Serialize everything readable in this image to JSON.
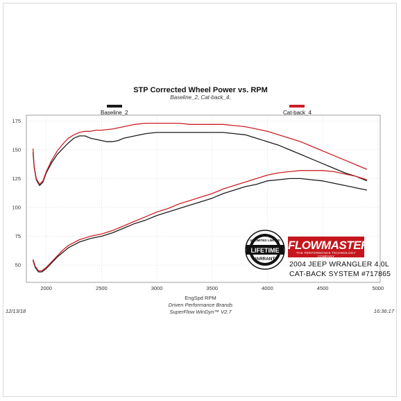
{
  "chart_data": {
    "type": "line",
    "title": "STP Corrected Wheel Power vs. RPM",
    "subtitle": "Baseline_2, Cat-back_4,",
    "xlabel": "EngSpd RPM",
    "ylabel": "",
    "xlim": [
      1820,
      5020
    ],
    "ylim": [
      35,
      180
    ],
    "x_ticks": [
      2000,
      2500,
      3000,
      3500,
      4000,
      4500,
      5000
    ],
    "y_ticks": [
      50,
      75,
      100,
      125,
      150,
      175
    ],
    "grid": true,
    "legend_placement": "top",
    "series": [
      {
        "name": "Baseline_2",
        "color": "#1a1a1a",
        "curve": "power",
        "points": [
          [
            1880,
            148
          ],
          [
            1890,
            135
          ],
          [
            1910,
            124
          ],
          [
            1940,
            119
          ],
          [
            1970,
            122
          ],
          [
            2000,
            130
          ],
          [
            2050,
            139
          ],
          [
            2100,
            146
          ],
          [
            2150,
            151
          ],
          [
            2200,
            156
          ],
          [
            2250,
            160
          ],
          [
            2300,
            162
          ],
          [
            2350,
            162
          ],
          [
            2400,
            160
          ],
          [
            2450,
            159
          ],
          [
            2500,
            158
          ],
          [
            2550,
            157
          ],
          [
            2600,
            157
          ],
          [
            2650,
            158
          ],
          [
            2700,
            160
          ],
          [
            2800,
            162
          ],
          [
            2900,
            164
          ],
          [
            3000,
            165
          ],
          [
            3100,
            165
          ],
          [
            3200,
            165
          ],
          [
            3300,
            165
          ],
          [
            3400,
            165
          ],
          [
            3500,
            165
          ],
          [
            3600,
            165
          ],
          [
            3700,
            164
          ],
          [
            3800,
            163
          ],
          [
            3900,
            160
          ],
          [
            4000,
            157
          ],
          [
            4100,
            154
          ],
          [
            4200,
            150
          ],
          [
            4300,
            146
          ],
          [
            4400,
            142
          ],
          [
            4500,
            138
          ],
          [
            4600,
            134
          ],
          [
            4700,
            130
          ],
          [
            4800,
            127
          ],
          [
            4900,
            123
          ]
        ]
      },
      {
        "name": "Baseline_2",
        "color": "#1a1a1a",
        "curve": "torque",
        "points": [
          [
            1880,
            54
          ],
          [
            1900,
            48
          ],
          [
            1930,
            44
          ],
          [
            1960,
            44
          ],
          [
            2000,
            47
          ],
          [
            2050,
            52
          ],
          [
            2100,
            57
          ],
          [
            2150,
            61
          ],
          [
            2200,
            65
          ],
          [
            2300,
            70
          ],
          [
            2400,
            73
          ],
          [
            2500,
            75
          ],
          [
            2600,
            78
          ],
          [
            2700,
            82
          ],
          [
            2800,
            86
          ],
          [
            2900,
            89
          ],
          [
            3000,
            93
          ],
          [
            3100,
            96
          ],
          [
            3200,
            99
          ],
          [
            3300,
            102
          ],
          [
            3400,
            105
          ],
          [
            3500,
            108
          ],
          [
            3600,
            112
          ],
          [
            3700,
            115
          ],
          [
            3800,
            118
          ],
          [
            3900,
            120
          ],
          [
            4000,
            123
          ],
          [
            4100,
            124
          ],
          [
            4200,
            125
          ],
          [
            4300,
            125
          ],
          [
            4400,
            124
          ],
          [
            4500,
            123
          ],
          [
            4600,
            121
          ],
          [
            4700,
            119
          ],
          [
            4800,
            117
          ],
          [
            4900,
            115
          ]
        ]
      },
      {
        "name": "Cat-back_4",
        "color": "#cc1f24",
        "curve": "power",
        "points": [
          [
            1880,
            151
          ],
          [
            1890,
            136
          ],
          [
            1910,
            125
          ],
          [
            1940,
            120
          ],
          [
            1970,
            123
          ],
          [
            2000,
            131
          ],
          [
            2050,
            141
          ],
          [
            2100,
            149
          ],
          [
            2150,
            155
          ],
          [
            2200,
            160
          ],
          [
            2250,
            163
          ],
          [
            2300,
            165
          ],
          [
            2350,
            166
          ],
          [
            2400,
            166
          ],
          [
            2450,
            167
          ],
          [
            2500,
            167
          ],
          [
            2600,
            168
          ],
          [
            2700,
            170
          ],
          [
            2800,
            172
          ],
          [
            2900,
            173
          ],
          [
            3000,
            173
          ],
          [
            3100,
            173
          ],
          [
            3200,
            173
          ],
          [
            3300,
            172
          ],
          [
            3400,
            172
          ],
          [
            3500,
            172
          ],
          [
            3600,
            172
          ],
          [
            3700,
            171
          ],
          [
            3800,
            170
          ],
          [
            3900,
            168
          ],
          [
            4000,
            166
          ],
          [
            4100,
            163
          ],
          [
            4200,
            160
          ],
          [
            4300,
            157
          ],
          [
            4400,
            153
          ],
          [
            4500,
            149
          ],
          [
            4600,
            145
          ],
          [
            4700,
            141
          ],
          [
            4800,
            137
          ],
          [
            4900,
            133
          ]
        ]
      },
      {
        "name": "Cat-back_4",
        "color": "#cc1f24",
        "curve": "torque",
        "points": [
          [
            1880,
            55
          ],
          [
            1900,
            49
          ],
          [
            1930,
            45
          ],
          [
            1960,
            45
          ],
          [
            2000,
            48
          ],
          [
            2050,
            53
          ],
          [
            2100,
            58
          ],
          [
            2150,
            63
          ],
          [
            2200,
            67
          ],
          [
            2300,
            72
          ],
          [
            2400,
            75
          ],
          [
            2500,
            77
          ],
          [
            2600,
            80
          ],
          [
            2700,
            84
          ],
          [
            2800,
            88
          ],
          [
            2900,
            92
          ],
          [
            3000,
            96
          ],
          [
            3100,
            99
          ],
          [
            3200,
            103
          ],
          [
            3300,
            106
          ],
          [
            3400,
            109
          ],
          [
            3500,
            112
          ],
          [
            3600,
            116
          ],
          [
            3700,
            119
          ],
          [
            3800,
            122
          ],
          [
            3900,
            125
          ],
          [
            4000,
            128
          ],
          [
            4100,
            130
          ],
          [
            4200,
            131
          ],
          [
            4300,
            132
          ],
          [
            4400,
            132
          ],
          [
            4500,
            132
          ],
          [
            4600,
            131
          ],
          [
            4700,
            129
          ],
          [
            4800,
            127
          ],
          [
            4900,
            124
          ]
        ]
      }
    ]
  },
  "legend": {
    "baseline_label": "Baseline_2",
    "baseline_color": "#1a1a1a",
    "catback_label": "Cat-back_4",
    "catback_color": "#cc1f24"
  },
  "footer": {
    "date": "12/13/18",
    "time": "16:36:17",
    "company": "Driven Performance Brands",
    "software": "SuperFlow WinDyn™ V2.7"
  },
  "branding": {
    "brand_name": "FLOWMASTER",
    "brand_tagline": "THE PERFORMANCE TECHNOLOGY COMPANY",
    "badge_top_text": "UNLIMITED LIMITED",
    "badge_main_text": "LIFETIME",
    "badge_sub_text": "WARRANTY",
    "product_line1": "2004 JEEP WRANGLER 4.0L",
    "product_line2": "CAT-BACK SYSTEM #717865",
    "brand_color": "#c4161c"
  }
}
